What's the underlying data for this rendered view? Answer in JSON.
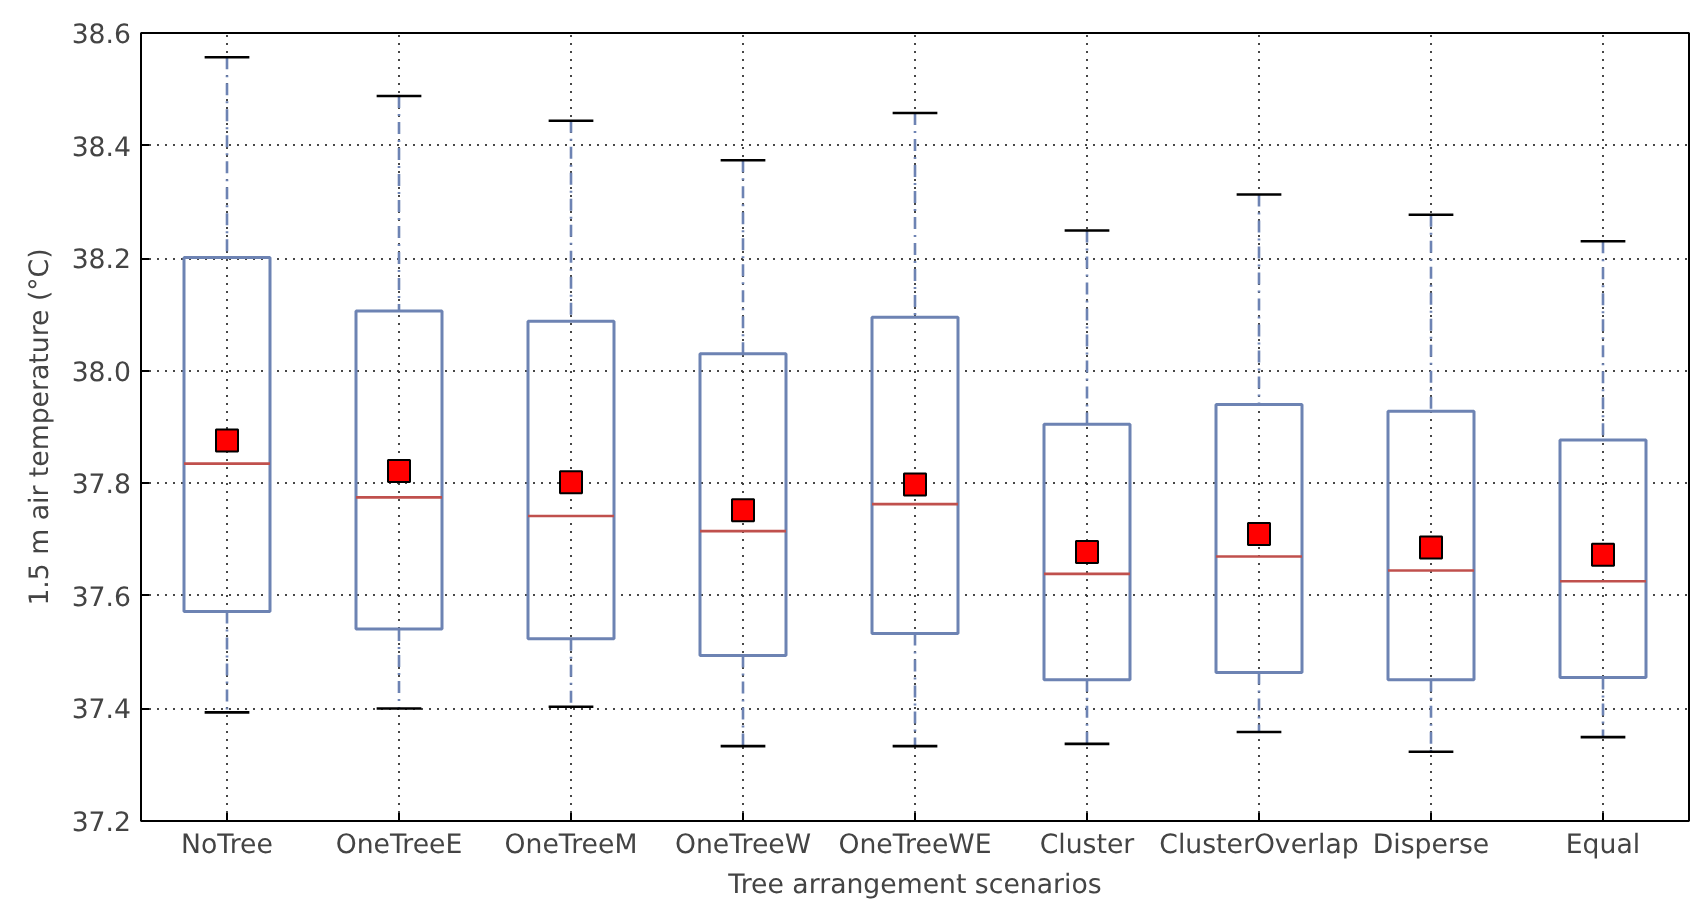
{
  "chart_data": {
    "type": "box",
    "xlabel": "Tree arrangement scenarios",
    "ylabel": "1.5 m air temperature (°C)",
    "categories": [
      "NoTree",
      "OneTreeE",
      "OneTreeM",
      "OneTreeW",
      "OneTreeWE",
      "Cluster",
      "ClusterOverlap",
      "Disperse",
      "Equal"
    ],
    "boxes": [
      {
        "low": 37.393,
        "q1": 37.572,
        "median": 37.835,
        "q3": 38.201,
        "high": 38.557,
        "mean": 37.876
      },
      {
        "low": 37.4,
        "q1": 37.541,
        "median": 37.775,
        "q3": 38.106,
        "high": 38.488,
        "mean": 37.822
      },
      {
        "low": 37.403,
        "q1": 37.524,
        "median": 37.742,
        "q3": 38.088,
        "high": 38.444,
        "mean": 37.802
      },
      {
        "low": 37.333,
        "q1": 37.494,
        "median": 37.715,
        "q3": 38.03,
        "high": 38.374,
        "mean": 37.752
      },
      {
        "low": 37.333,
        "q1": 37.533,
        "median": 37.763,
        "q3": 38.095,
        "high": 38.458,
        "mean": 37.798
      },
      {
        "low": 37.337,
        "q1": 37.451,
        "median": 37.639,
        "q3": 37.905,
        "high": 38.249,
        "mean": 37.678
      },
      {
        "low": 37.358,
        "q1": 37.464,
        "median": 37.67,
        "q3": 37.94,
        "high": 38.313,
        "mean": 37.71
      },
      {
        "low": 37.323,
        "q1": 37.451,
        "median": 37.645,
        "q3": 37.928,
        "high": 38.277,
        "mean": 37.686
      },
      {
        "low": 37.349,
        "q1": 37.455,
        "median": 37.626,
        "q3": 37.877,
        "high": 38.23,
        "mean": 37.673
      }
    ],
    "color": "#6d83b3",
    "marker": "square",
    "line_style": "dashed",
    "ylim": [
      37.2,
      38.6
    ],
    "yticks": [
      {
        "value": 37.2,
        "label": "37.2"
      },
      {
        "value": 37.4,
        "label": "37.4"
      },
      {
        "value": 37.6,
        "label": "37.6"
      },
      {
        "value": 37.8,
        "label": "37.8"
      },
      {
        "value": 38.0,
        "label": "38.0"
      },
      {
        "value": 38.2,
        "label": "38.2"
      },
      {
        "value": 38.4,
        "label": "38.4"
      },
      {
        "value": 38.6,
        "label": "38.6"
      }
    ],
    "grid": true
  }
}
